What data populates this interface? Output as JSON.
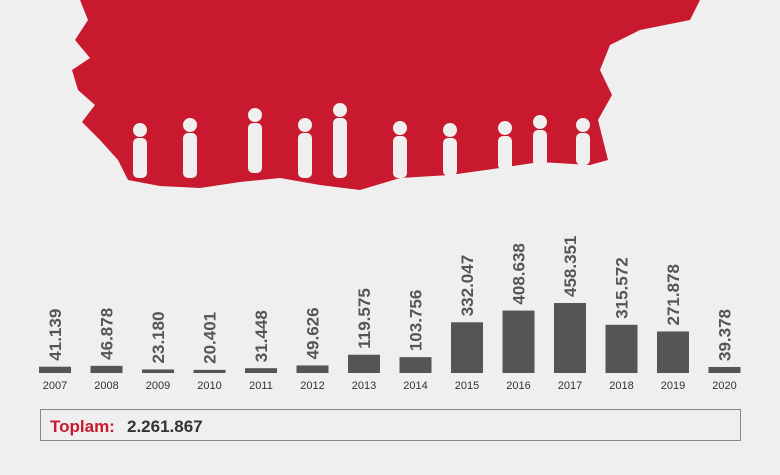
{
  "chart_data": {
    "type": "bar",
    "categories": [
      "2007",
      "2008",
      "2009",
      "2010",
      "2011",
      "2012",
      "2013",
      "2014",
      "2015",
      "2016",
      "2017",
      "2018",
      "2019",
      "2020"
    ],
    "values": [
      41139,
      46878,
      23180,
      20401,
      31448,
      49626,
      119575,
      103756,
      332047,
      408638,
      458351,
      315572,
      271878,
      39378
    ],
    "value_labels": [
      "41.139",
      "46.878",
      "23.180",
      "20.401",
      "31.448",
      "49.626",
      "119.575",
      "103.756",
      "332.047",
      "408.638",
      "458.351",
      "315.572",
      "271.878",
      "39.378"
    ],
    "color": "#555555",
    "total_label": "Toplam:",
    "total": "2.261.867"
  }
}
